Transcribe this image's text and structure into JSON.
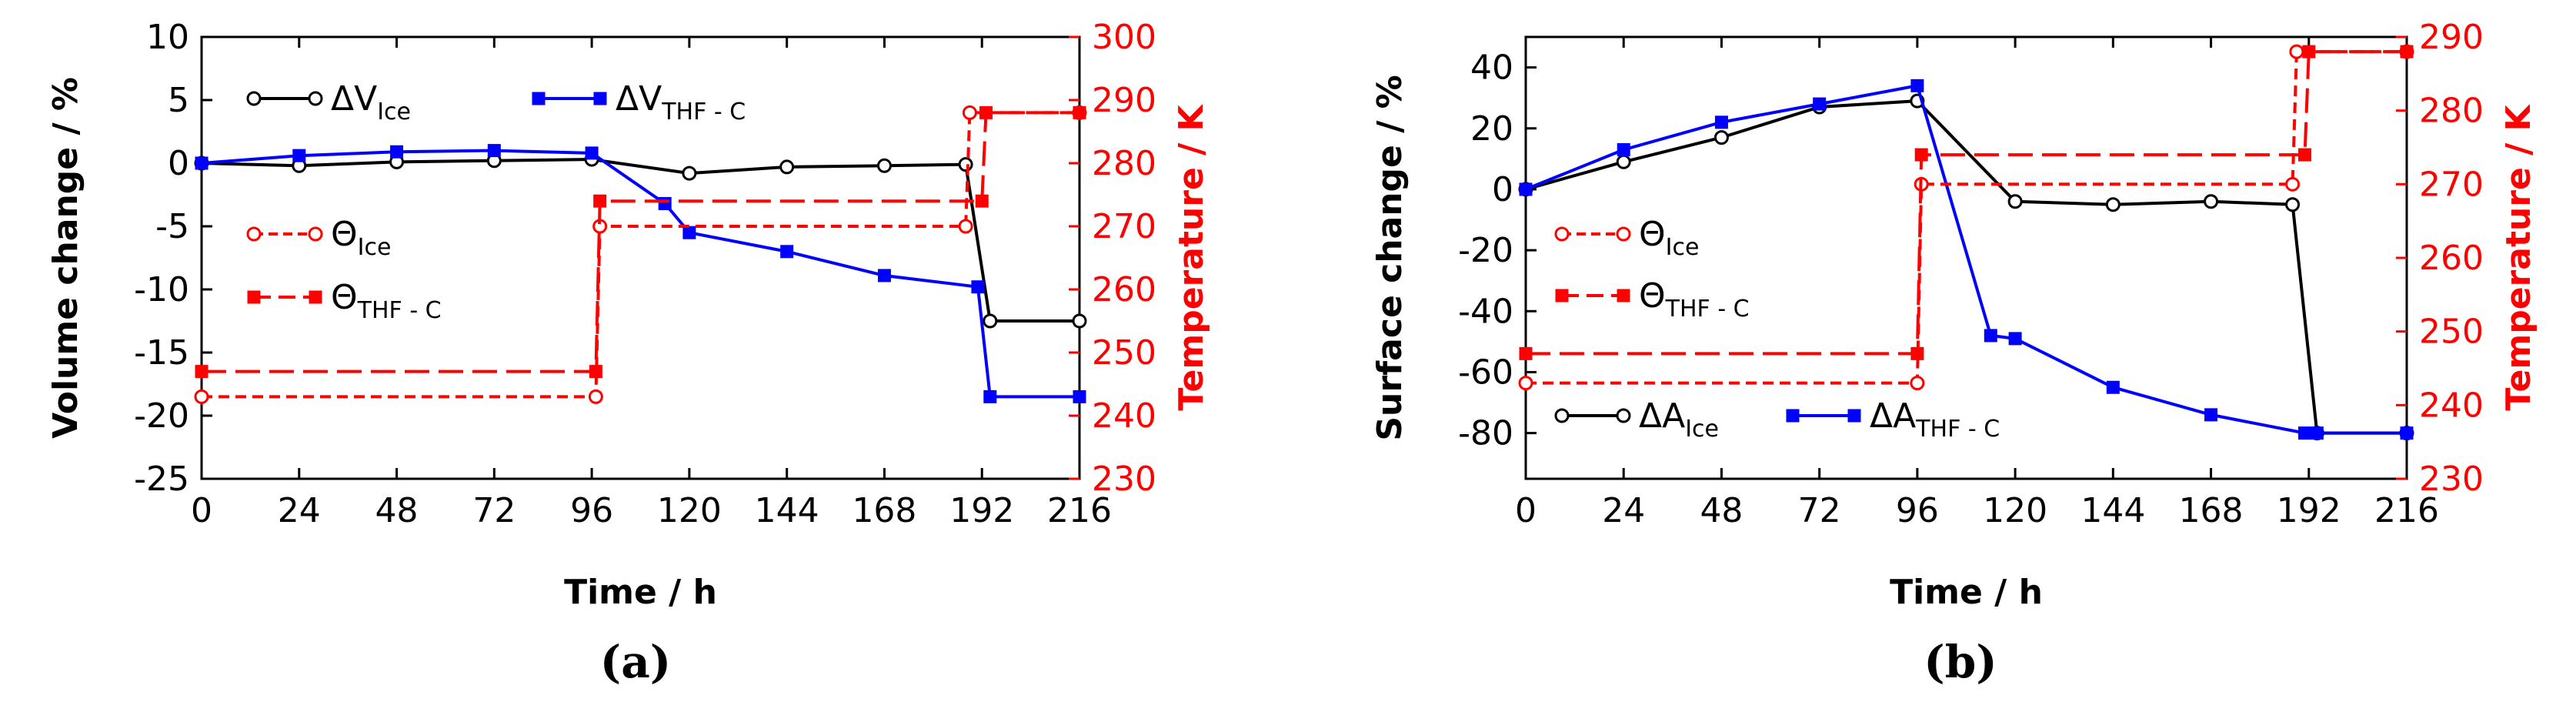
{
  "chart_data": [
    {
      "type": "line",
      "panel_label": "(a)",
      "xlabel": "Time / h",
      "ylabel": "Volume change / %",
      "ylabel_right": "Temperature / K",
      "xlim": [
        0,
        216
      ],
      "ylim": [
        -25,
        10
      ],
      "ylim_right": [
        230,
        300
      ],
      "xticks": [
        0,
        24,
        48,
        72,
        96,
        120,
        144,
        168,
        192,
        216
      ],
      "yticks": [
        -25,
        -20,
        -15,
        -10,
        -5,
        0,
        5,
        10
      ],
      "yticks_right": [
        230,
        240,
        250,
        260,
        270,
        280,
        290,
        300
      ],
      "grid": false,
      "series": [
        {
          "name": "ΔV",
          "sub": "Ice",
          "axis": "left",
          "color": "#000000",
          "marker": "open-circle",
          "dash": "solid",
          "x": [
            0,
            24,
            48,
            72,
            96,
            120,
            144,
            168,
            188,
            194,
            216
          ],
          "y": [
            0,
            -0.2,
            0.1,
            0.2,
            0.3,
            -0.8,
            -0.3,
            -0.2,
            -0.1,
            -12.5,
            -12.5
          ]
        },
        {
          "name": "ΔV",
          "sub": "THF - C",
          "axis": "left",
          "color": "#0000ff",
          "marker": "filled-square",
          "dash": "solid",
          "x": [
            0,
            24,
            48,
            72,
            96,
            114,
            120,
            144,
            168,
            191,
            194,
            216
          ],
          "y": [
            0,
            0.6,
            0.9,
            1.0,
            0.8,
            -3.2,
            -5.5,
            -7.0,
            -8.9,
            -9.8,
            -18.5,
            -18.5
          ]
        },
        {
          "name": "Θ",
          "sub": "Ice",
          "axis": "right",
          "color": "#ff0000",
          "marker": "open-circle",
          "dash": "short",
          "x": [
            0,
            97,
            98,
            188,
            189,
            216
          ],
          "y": [
            243,
            243,
            270,
            270,
            288,
            288
          ]
        },
        {
          "name": "Θ",
          "sub": "THF - C",
          "axis": "right",
          "color": "#ff0000",
          "marker": "filled-square",
          "dash": "long",
          "x": [
            0,
            97,
            98,
            192,
            193,
            216
          ],
          "y": [
            247,
            247,
            274,
            274,
            288,
            288
          ]
        }
      ],
      "markers": {
        "ΔV_Ice": [
          0,
          24,
          48,
          72,
          96,
          120,
          144,
          168,
          188,
          194,
          216
        ],
        "ΔV_THF-C": [
          0,
          24,
          48,
          72,
          96,
          114,
          120,
          144,
          168,
          191,
          194,
          216
        ],
        "Θ_Ice": [
          0,
          97,
          98,
          188,
          189,
          216
        ],
        "Θ_THF-C": [
          0,
          97,
          98,
          192,
          193,
          216
        ]
      }
    },
    {
      "type": "line",
      "panel_label": "(b)",
      "xlabel": "Time / h",
      "ylabel": "Surface change / %",
      "ylabel_right": "Temperature / K",
      "xlim": [
        0,
        216
      ],
      "ylim": [
        -95,
        50
      ],
      "ylim_right": [
        230,
        290
      ],
      "xticks": [
        0,
        24,
        48,
        72,
        96,
        120,
        144,
        168,
        192,
        216
      ],
      "yticks": [
        -80,
        -60,
        -40,
        -20,
        0,
        20,
        40
      ],
      "yticks_right": [
        230,
        240,
        250,
        260,
        270,
        280,
        290
      ],
      "grid": false,
      "series": [
        {
          "name": "ΔA",
          "sub": "Ice",
          "axis": "left",
          "color": "#000000",
          "marker": "open-circle",
          "dash": "solid",
          "x": [
            0,
            24,
            48,
            72,
            96,
            120,
            144,
            168,
            188,
            194,
            216
          ],
          "y": [
            0,
            9,
            17,
            27,
            29,
            -4,
            -5,
            -4,
            -5,
            -80,
            -80
          ]
        },
        {
          "name": "ΔA",
          "sub": "THF - C",
          "axis": "left",
          "color": "#0000ff",
          "marker": "filled-square",
          "dash": "solid",
          "x": [
            0,
            24,
            48,
            72,
            96,
            114,
            120,
            144,
            168,
            191,
            194,
            216
          ],
          "y": [
            0,
            13,
            22,
            28,
            34,
            -48,
            -49,
            -65,
            -74,
            -80,
            -80,
            -80
          ]
        },
        {
          "name": "Θ",
          "sub": "Ice",
          "axis": "right",
          "color": "#ff0000",
          "marker": "open-circle",
          "dash": "short",
          "x": [
            0,
            96,
            97,
            188,
            189,
            216
          ],
          "y": [
            243,
            243,
            270,
            270,
            288,
            288
          ]
        },
        {
          "name": "Θ",
          "sub": "THF - C",
          "axis": "right",
          "color": "#ff0000",
          "marker": "filled-square",
          "dash": "long",
          "x": [
            0,
            96,
            97,
            191,
            192,
            216
          ],
          "y": [
            247,
            247,
            274,
            274,
            288,
            288
          ]
        }
      ],
      "markers": {
        "ΔA_Ice": [
          0,
          24,
          48,
          72,
          96,
          120,
          144,
          168,
          188,
          194,
          216
        ],
        "ΔA_THF-C": [
          0,
          24,
          48,
          72,
          96,
          114,
          120,
          144,
          168,
          191,
          194,
          216
        ],
        "Θ_Ice": [
          0,
          97,
          188,
          216
        ],
        "Θ_THF-C": [
          0,
          96,
          97,
          191,
          192,
          216
        ]
      }
    }
  ]
}
